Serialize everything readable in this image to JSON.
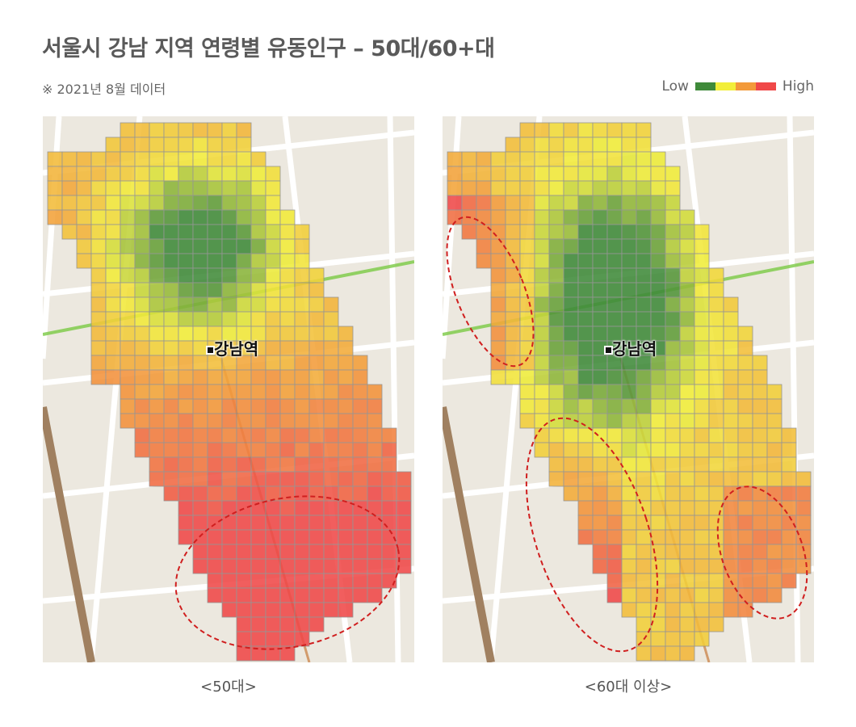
{
  "title": "서울시 강남 지역 연령별 유동인구 – 50대/60+대",
  "note": "※ 2021년 8월 데이터",
  "legend": {
    "low": "Low",
    "high": "High",
    "colors": [
      "#3f8a3a",
      "#f2ee3a",
      "#f39a3a",
      "#f04848"
    ]
  },
  "map": {
    "station_label": "강남역",
    "base_colors": {
      "land": "#ece8df",
      "road": "#ffffff",
      "rail": "#a08060",
      "subway_line": "#7ac943"
    }
  },
  "panels": [
    {
      "id": "left",
      "caption": "<50대>",
      "highlight": "south-east area (dashed ellipse)"
    },
    {
      "id": "right",
      "caption": "<60대 이상>",
      "highlight": "west and south-west areas (dashed ellipses)"
    }
  ]
}
